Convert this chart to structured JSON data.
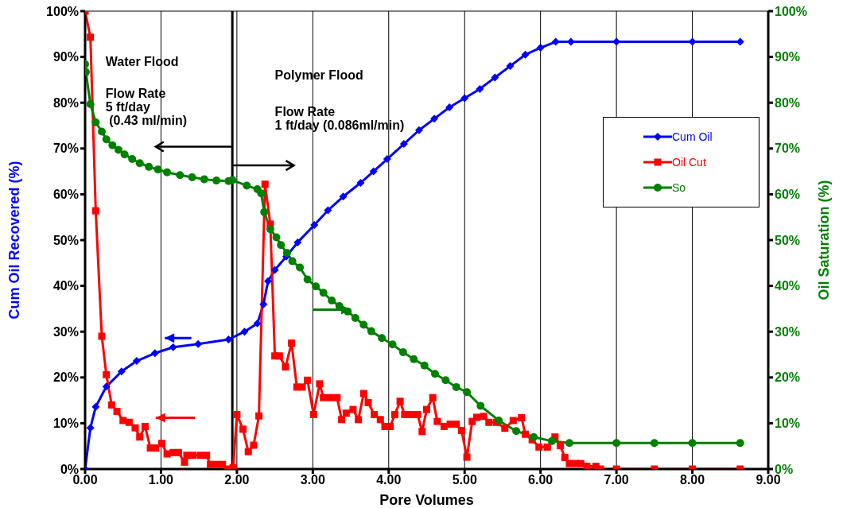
{
  "chart_data": {
    "type": "line",
    "xlabel": "Pore Volumes",
    "ylabel": "Cum Oil Recovered (%)",
    "y2label": "Oil Saturation (%)",
    "xlim": [
      0,
      9
    ],
    "xticks": [
      {
        "value": 0,
        "label": "0.00"
      },
      {
        "value": 1,
        "label": "1.00"
      },
      {
        "value": 2,
        "label": "2.00"
      },
      {
        "value": 3,
        "label": "3.00"
      },
      {
        "value": 4,
        "label": "4.00"
      },
      {
        "value": 5,
        "label": "5.00"
      },
      {
        "value": 6,
        "label": "6.00"
      },
      {
        "value": 7,
        "label": "7.00"
      },
      {
        "value": 8,
        "label": "8.00"
      },
      {
        "value": 9,
        "label": "9.00"
      }
    ],
    "ylim": [
      0,
      100
    ],
    "yticks": [
      {
        "value": 0,
        "label": "0%"
      },
      {
        "value": 10,
        "label": "10%"
      },
      {
        "value": 20,
        "label": "20%"
      },
      {
        "value": 30,
        "label": "30%"
      },
      {
        "value": 40,
        "label": "40%"
      },
      {
        "value": 50,
        "label": "50%"
      },
      {
        "value": 60,
        "label": "60%"
      },
      {
        "value": 70,
        "label": "70%"
      },
      {
        "value": 80,
        "label": "80%"
      },
      {
        "value": 90,
        "label": "90%"
      },
      {
        "value": 100,
        "label": "100%"
      }
    ],
    "y2lim": [
      0,
      100
    ],
    "y2ticks": [
      {
        "value": 0,
        "label": "0%"
      },
      {
        "value": 10,
        "label": "10%"
      },
      {
        "value": 20,
        "label": "20%"
      },
      {
        "value": 30,
        "label": "30%"
      },
      {
        "value": 40,
        "label": "40%"
      },
      {
        "value": 50,
        "label": "50%"
      },
      {
        "value": 60,
        "label": "60%"
      },
      {
        "value": 70,
        "label": "70%"
      },
      {
        "value": 80,
        "label": "80%"
      },
      {
        "value": 90,
        "label": "90%"
      },
      {
        "value": 100,
        "label": "100%"
      }
    ],
    "grid": true,
    "legend": "right",
    "line_style": "solid",
    "series": [
      {
        "name": "Cum Oil",
        "color": "#0000ff",
        "marker": "diamond",
        "x": [
          0,
          0.07,
          0.14,
          0.28,
          0.48,
          0.68,
          0.92,
          1.16,
          1.49,
          1.89,
          2.1,
          2.27,
          2.35,
          2.41,
          2.5,
          2.65,
          2.8,
          3.02,
          3.2,
          3.4,
          3.63,
          3.8,
          3.98,
          4.2,
          4.4,
          4.6,
          4.8,
          5.0,
          5.2,
          5.4,
          5.6,
          5.8,
          6.0,
          6.2,
          6.4,
          7.0,
          8.0,
          8.63
        ],
        "values": [
          0,
          9,
          13.6,
          18,
          21.3,
          23.6,
          25.3,
          26.6,
          27.3,
          28.3,
          30,
          31.8,
          36,
          41,
          43.5,
          46.4,
          49.5,
          53.3,
          56.5,
          59.5,
          62.5,
          65,
          67.7,
          71,
          74,
          76.5,
          79,
          81,
          83,
          85.5,
          88,
          90.5,
          92,
          93.3,
          93.3,
          93.3,
          93.3,
          93.3
        ]
      },
      {
        "name": "Oil Cut",
        "color": "#ff0000",
        "marker": "square",
        "x": [
          0,
          0.07,
          0.14,
          0.22,
          0.28,
          0.35,
          0.42,
          0.5,
          0.58,
          0.66,
          0.72,
          0.79,
          0.86,
          0.93,
          1.01,
          1.08,
          1.16,
          1.23,
          1.31,
          1.34,
          1.42,
          1.52,
          1.6,
          1.65,
          1.73,
          1.81,
          1.87,
          1.95,
          2.0,
          2.08,
          2.15,
          2.22,
          2.29,
          2.37,
          2.44,
          2.5,
          2.56,
          2.64,
          2.72,
          2.79,
          2.86,
          2.93,
          3.01,
          3.09,
          3.14,
          3.23,
          3.32,
          3.38,
          3.44,
          3.53,
          3.6,
          3.67,
          3.73,
          3.81,
          3.89,
          3.95,
          4.02,
          4.08,
          4.15,
          4.21,
          4.3,
          4.38,
          4.44,
          4.5,
          4.58,
          4.64,
          4.73,
          4.81,
          4.89,
          4.96,
          5.03,
          5.1,
          5.16,
          5.25,
          5.32,
          5.42,
          5.53,
          5.64,
          5.75,
          5.8,
          5.89,
          5.98,
          6.09,
          6.19,
          6.26,
          6.32,
          6.38,
          6.46,
          6.53,
          6.61,
          6.73,
          6.79,
          7.0,
          7.5,
          8.0,
          8.63
        ],
        "values": [
          100,
          94.3,
          56.4,
          29,
          20.6,
          14,
          12.6,
          10.6,
          10.2,
          9,
          7,
          9.3,
          4.6,
          4.6,
          5.6,
          3.3,
          3.6,
          3.6,
          1.5,
          3,
          3,
          3,
          3,
          1,
          1,
          1,
          0,
          0.3,
          11.9,
          8.7,
          3.8,
          5.2,
          11.6,
          62.2,
          53.5,
          24.7,
          24.7,
          22.3,
          27.5,
          17.9,
          17.9,
          19.4,
          11.9,
          18.6,
          15.6,
          15.6,
          15.6,
          10.8,
          12.2,
          13,
          10.8,
          16.5,
          14.5,
          11.9,
          10.8,
          9.3,
          9.3,
          11.9,
          14.8,
          11.9,
          11.9,
          11.9,
          8.2,
          13,
          15.6,
          10.4,
          9.3,
          9.8,
          9.8,
          8.4,
          2.6,
          10.4,
          11.3,
          11.5,
          10.2,
          10.2,
          8.9,
          10.6,
          11.2,
          7.6,
          6.4,
          4.8,
          4.8,
          7,
          5.1,
          2.5,
          1.2,
          1.2,
          1.2,
          0.6,
          0.6,
          0,
          0,
          0,
          0,
          0
        ]
      },
      {
        "name": "So",
        "color": "#008000",
        "marker": "circle",
        "axis": "y2",
        "x": [
          0,
          0.01,
          0.07,
          0.14,
          0.22,
          0.28,
          0.36,
          0.44,
          0.52,
          0.62,
          0.72,
          0.84,
          0.96,
          1.08,
          1.25,
          1.41,
          1.57,
          1.73,
          1.89,
          1.94,
          2.13,
          2.27,
          2.32,
          2.36,
          2.44,
          2.52,
          2.58,
          2.66,
          2.73,
          2.83,
          2.93,
          3.04,
          3.14,
          3.25,
          3.35,
          3.46,
          3.56,
          3.67,
          3.77,
          3.91,
          4.05,
          4.19,
          4.33,
          4.47,
          4.61,
          4.75,
          4.89,
          5.03,
          5.21,
          5.45,
          5.68,
          5.91,
          6.15,
          6.38,
          7.0,
          7.5,
          8.0,
          8.63
        ],
        "values": [
          88.4,
          86.7,
          79.7,
          75.7,
          73.7,
          72,
          70.7,
          69.7,
          68.7,
          67.7,
          66.8,
          66,
          65.4,
          64.8,
          64.2,
          63.7,
          63.3,
          63,
          62.9,
          63.1,
          61.9,
          61.1,
          60.2,
          56.1,
          52.4,
          50.6,
          48.9,
          47.2,
          45.4,
          44,
          41.4,
          39.9,
          38.5,
          36.8,
          35.6,
          34.4,
          33,
          31.5,
          30.1,
          28.6,
          27.2,
          25.5,
          24,
          22.6,
          20.8,
          19.4,
          17.9,
          16.8,
          13.8,
          10.6,
          8.3,
          7,
          6.1,
          5.7,
          5.7,
          5.7,
          5.7,
          5.7
        ]
      }
    ],
    "ref_lines": [
      {
        "axis": "x",
        "value": 1.94,
        "color": "#000000"
      }
    ],
    "annotations": [
      "Water Flood",
      "Flow Rate\n5 ft/day\n (0.43 ml/min)",
      "Polymer Flood",
      "Flow Rate\n1 ft/day (0.086ml/min)"
    ]
  }
}
